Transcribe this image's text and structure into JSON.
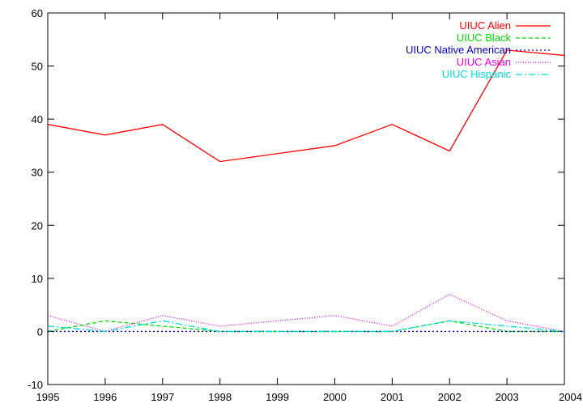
{
  "chart_data": {
    "type": "line",
    "title": "",
    "xlabel": "",
    "ylabel": "",
    "xlim": [
      1995,
      2004
    ],
    "ylim": [
      -10,
      60
    ],
    "x_ticks": [
      1995,
      1996,
      1997,
      1998,
      1999,
      2000,
      2001,
      2002,
      2003,
      2004
    ],
    "y_ticks": [
      -10,
      0,
      10,
      20,
      30,
      40,
      50,
      60
    ],
    "x_tick_labels": [
      "1995",
      "1996",
      "1997",
      "1998",
      "1999",
      "2000",
      "2001",
      "2002",
      "2003",
      "2004"
    ],
    "y_tick_labels": [
      "-10",
      "0",
      "10",
      "20",
      "30",
      "40",
      "50",
      "60"
    ],
    "grid": false,
    "legend_position": "top-right",
    "x": [
      1995,
      1996,
      1997,
      1998,
      1999,
      2000,
      2001,
      2002,
      2003,
      2004
    ],
    "series": [
      {
        "name": "UIUC Alien",
        "color": "#ff0000",
        "dash": "solid",
        "values": [
          39,
          37,
          39,
          32,
          33.5,
          35,
          39,
          34,
          53,
          52
        ]
      },
      {
        "name": "UIUC Black",
        "color": "#00dd00",
        "dash": "dashed",
        "values": [
          0,
          2,
          1,
          0,
          0,
          0,
          0,
          2,
          0,
          0
        ]
      },
      {
        "name": "UIUC Native American",
        "color": "#0000cc",
        "dash": "dotted",
        "values": [
          0,
          0,
          0,
          0,
          0,
          0,
          0,
          0,
          0,
          0
        ]
      },
      {
        "name": "UIUC Asian",
        "color": "#ee00ee",
        "dash": "dotted-fine",
        "values": [
          3,
          0,
          3,
          1,
          2,
          3,
          1,
          7,
          2,
          0
        ]
      },
      {
        "name": "UIUC Hispanic",
        "color": "#00dddd",
        "dash": "dashdot",
        "values": [
          1,
          0,
          2,
          0,
          0,
          0,
          0,
          2,
          1,
          0
        ]
      }
    ]
  }
}
